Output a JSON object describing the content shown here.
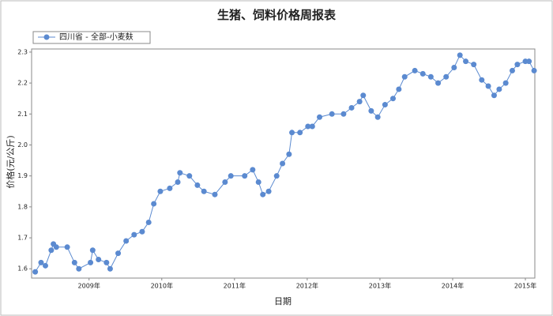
{
  "chart_data": {
    "type": "line",
    "title": "生猪、饲料价格周报表",
    "xlabel": "日期",
    "ylabel": "价格(元/公斤)",
    "legend": "upper left",
    "marker": true,
    "x": [
      2008.26,
      2008.34,
      2008.4,
      2008.48,
      2008.51,
      2008.55,
      2008.7,
      2008.8,
      2008.86,
      2009.02,
      2009.05,
      2009.13,
      2009.24,
      2009.29,
      2009.4,
      2009.51,
      2009.62,
      2009.73,
      2009.82,
      2009.89,
      2009.98,
      2010.11,
      2010.22,
      2010.25,
      2010.38,
      2010.49,
      2010.58,
      2010.73,
      2010.87,
      2010.95,
      2011.14,
      2011.25,
      2011.33,
      2011.39,
      2011.47,
      2011.58,
      2011.66,
      2011.75,
      2011.79,
      2011.9,
      2012.01,
      2012.07,
      2012.17,
      2012.34,
      2012.5,
      2012.61,
      2012.72,
      2012.77,
      2012.88,
      2012.97,
      2013.07,
      2013.18,
      2013.26,
      2013.34,
      2013.48,
      2013.59,
      2013.7,
      2013.8,
      2013.91,
      2014.02,
      2014.1,
      2014.18,
      2014.29,
      2014.4,
      2014.49,
      2014.57,
      2014.64,
      2014.73,
      2014.82,
      2014.89,
      2015.0,
      2015.05,
      2015.12
    ],
    "series": [
      {
        "name": "四川省 - 全部-小麦麸",
        "color": "#5b8ad0",
        "values": [
          1.59,
          1.62,
          1.61,
          1.66,
          1.68,
          1.67,
          1.67,
          1.62,
          1.6,
          1.62,
          1.66,
          1.63,
          1.62,
          1.6,
          1.65,
          1.69,
          1.71,
          1.72,
          1.75,
          1.81,
          1.85,
          1.86,
          1.88,
          1.91,
          1.9,
          1.87,
          1.85,
          1.84,
          1.88,
          1.9,
          1.9,
          1.92,
          1.88,
          1.84,
          1.85,
          1.9,
          1.94,
          1.97,
          2.04,
          2.04,
          2.06,
          2.06,
          2.09,
          2.1,
          2.1,
          2.12,
          2.14,
          2.16,
          2.11,
          2.09,
          2.13,
          2.15,
          2.18,
          2.22,
          2.24,
          2.23,
          2.22,
          2.2,
          2.22,
          2.25,
          2.29,
          2.27,
          2.26,
          2.21,
          2.19,
          2.16,
          2.18,
          2.2,
          2.24,
          2.26,
          2.27,
          2.27,
          2.24
        ]
      }
    ],
    "xlim": [
      2008.21,
      2015.13
    ],
    "xticks": [
      {
        "value": 2009,
        "label": "2009年"
      },
      {
        "value": 2010,
        "label": "2010年"
      },
      {
        "value": 2011,
        "label": "2011年"
      },
      {
        "value": 2012,
        "label": "2012年"
      },
      {
        "value": 2013,
        "label": "2013年"
      },
      {
        "value": 2014,
        "label": "2014年"
      },
      {
        "value": 2015,
        "label": "2015年"
      }
    ],
    "ylim": [
      1.57,
      2.31
    ],
    "yticks": [
      1.6,
      1.7,
      1.8,
      1.9,
      {
        "value": 2,
        "label": "2.0"
      },
      2.1,
      2.2,
      2.3
    ]
  }
}
